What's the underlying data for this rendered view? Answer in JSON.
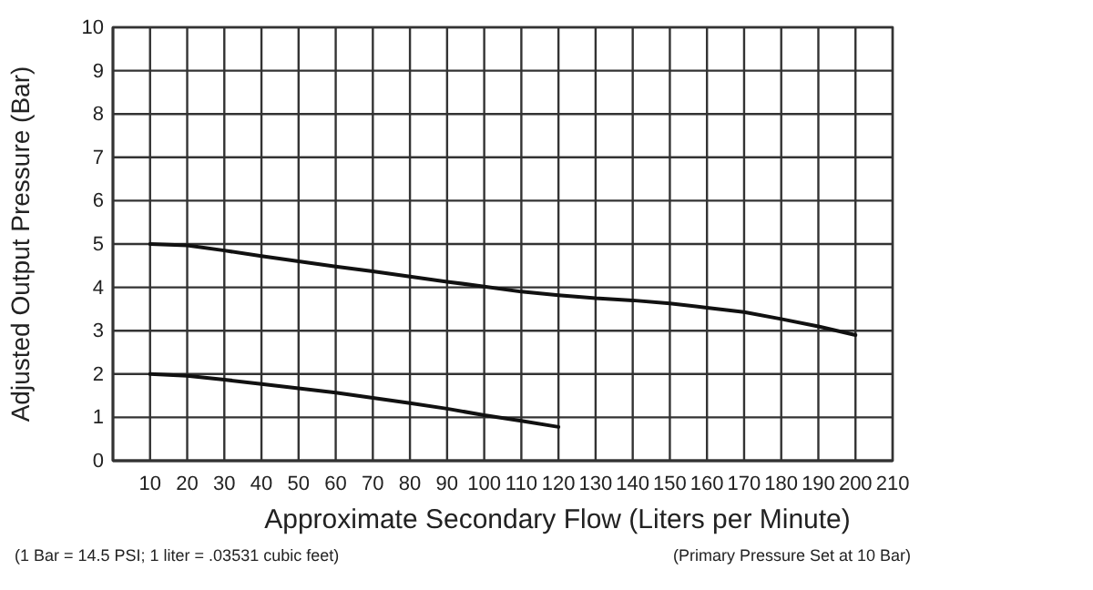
{
  "chart_data": {
    "type": "line",
    "xlabel": "Approximate Secondary Flow (Liters per Minute)",
    "ylabel": "Adjusted Output Pressure (Bar)",
    "annotations": [
      "(1 Bar = 14.5 PSI; 1 liter = .03531 cubic feet)",
      "(Primary Pressure Set at 10 Bar)"
    ],
    "x": [
      10,
      20,
      30,
      40,
      50,
      60,
      70,
      80,
      90,
      100,
      110,
      120,
      130,
      140,
      150,
      160,
      170,
      180,
      190,
      200
    ],
    "series": [
      {
        "color": "#111111",
        "values": [
          5.0,
          4.97,
          4.85,
          4.72,
          4.6,
          4.48,
          4.37,
          4.25,
          4.13,
          4.02,
          3.9,
          3.82,
          3.75,
          3.7,
          3.63,
          3.53,
          3.43,
          3.27,
          3.1,
          2.9
        ]
      },
      {
        "color": "#111111",
        "x": [
          10,
          20,
          30,
          40,
          50,
          60,
          70,
          80,
          90,
          100,
          110,
          120
        ],
        "values": [
          2.0,
          1.96,
          1.87,
          1.77,
          1.67,
          1.57,
          1.45,
          1.33,
          1.2,
          1.05,
          0.92,
          0.78
        ]
      }
    ],
    "xlim": [
      0,
      210
    ],
    "xticks": [
      10,
      20,
      30,
      40,
      50,
      60,
      70,
      80,
      90,
      100,
      110,
      120,
      130,
      140,
      150,
      160,
      170,
      180,
      190,
      200,
      210
    ],
    "ylim": [
      0,
      10
    ],
    "yticks": [
      0,
      1,
      2,
      3,
      4,
      5,
      6,
      7,
      8,
      9,
      10
    ],
    "grid": true,
    "marker": "none",
    "line_style": "solid"
  }
}
